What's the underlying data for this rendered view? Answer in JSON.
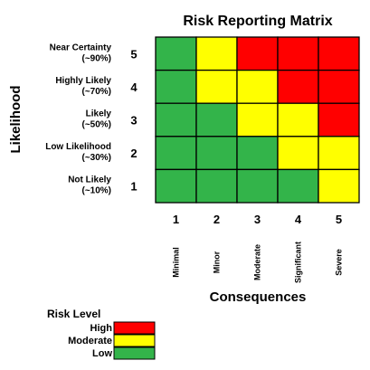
{
  "colors": {
    "high": "#ff0000",
    "moderate": "#ffff00",
    "low": "#33b44a",
    "grid": "#000000"
  },
  "chart_data": {
    "type": "heatmap",
    "title": "Risk Reporting Matrix",
    "xlabel": "Consequences",
    "ylabel": "Likelihood",
    "x": [
      {
        "value": 1,
        "label": "Minimal"
      },
      {
        "value": 2,
        "label": "Minor"
      },
      {
        "value": 3,
        "label": "Moderate"
      },
      {
        "value": 4,
        "label": "Significant"
      },
      {
        "value": 5,
        "label": "Severe"
      }
    ],
    "y": [
      {
        "value": 5,
        "label_line1": "Near Certainty",
        "label_line2": "(~90%)"
      },
      {
        "value": 4,
        "label_line1": "Highly Likely",
        "label_line2": "(~70%)"
      },
      {
        "value": 3,
        "label_line1": "Likely",
        "label_line2": "(~50%)"
      },
      {
        "value": 2,
        "label_line1": "Low Likelihood",
        "label_line2": "(~30%)"
      },
      {
        "value": 1,
        "label_line1": "Not Likely",
        "label_line2": "(~10%)"
      }
    ],
    "cells": [
      [
        "low",
        "moderate",
        "high",
        "high",
        "high"
      ],
      [
        "low",
        "moderate",
        "moderate",
        "high",
        "high"
      ],
      [
        "low",
        "low",
        "moderate",
        "moderate",
        "high"
      ],
      [
        "low",
        "low",
        "low",
        "moderate",
        "moderate"
      ],
      [
        "low",
        "low",
        "low",
        "low",
        "moderate"
      ]
    ],
    "legend": {
      "title": "Risk Level",
      "items": [
        {
          "key": "high",
          "label": "High"
        },
        {
          "key": "moderate",
          "label": "Moderate"
        },
        {
          "key": "low",
          "label": "Low"
        }
      ]
    }
  }
}
